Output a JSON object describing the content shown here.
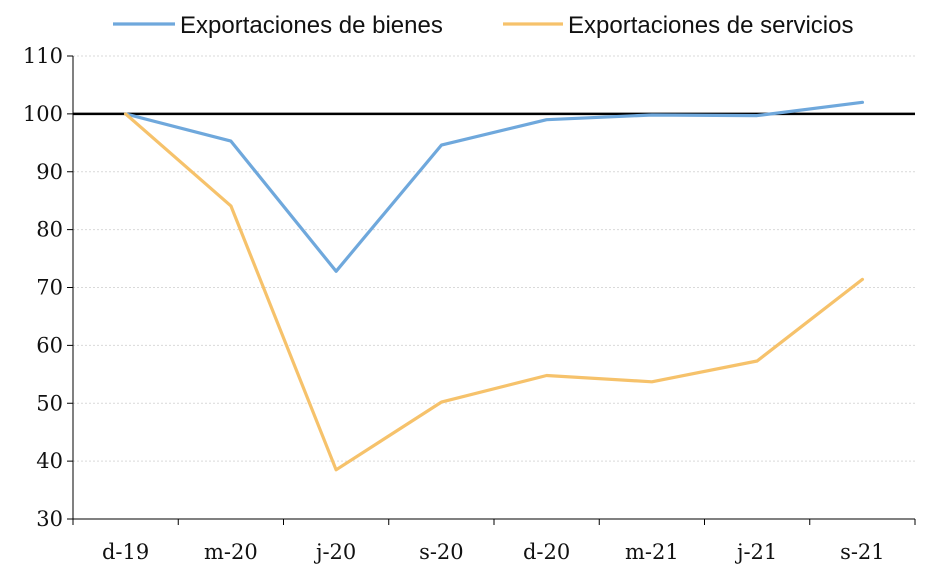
{
  "chart_data": {
    "type": "line",
    "categories": [
      "d-19",
      "m-20",
      "j-20",
      "s-20",
      "d-20",
      "m-21",
      "j-21",
      "s-21"
    ],
    "series": [
      {
        "name": "Exportaciones de bienes",
        "color": "#6fa8dc",
        "values": [
          100,
          95.3,
          72.8,
          94.6,
          99.0,
          99.8,
          99.7,
          102.0
        ]
      },
      {
        "name": "Exportaciones de servicios",
        "color": "#f6c26b",
        "values": [
          100,
          84.1,
          38.5,
          50.2,
          54.8,
          53.7,
          57.3,
          71.4
        ]
      }
    ],
    "yticks": [
      "30",
      "40",
      "50",
      "60",
      "70",
      "80",
      "90",
      "100",
      "110"
    ],
    "ylim": [
      30,
      110
    ],
    "reference_line": {
      "value": 100,
      "color": "#000000"
    },
    "grid": true,
    "grid_color": "#d9d9d9",
    "legend_position": "top",
    "title": "",
    "xlabel": "",
    "ylabel": ""
  }
}
